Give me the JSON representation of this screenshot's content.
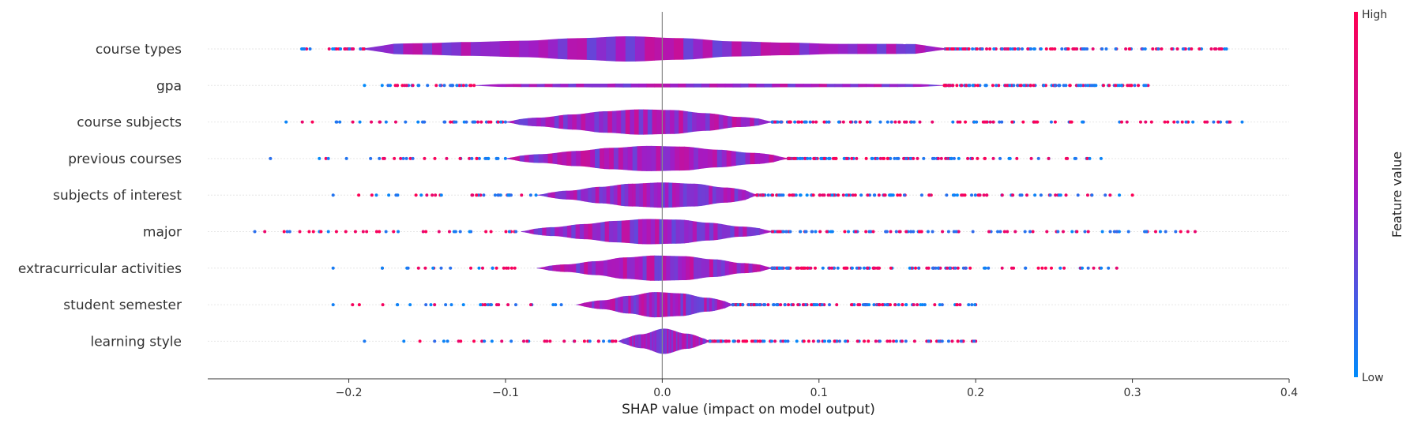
{
  "chart_data": {
    "type": "scatter",
    "subtype": "shap-violin-summary",
    "xlabel": "SHAP value (impact on model output)",
    "xlim": [
      -0.29,
      0.4
    ],
    "xticks": [
      -0.2,
      -0.1,
      0.0,
      0.1,
      0.2,
      0.3,
      0.4
    ],
    "xtick_labels": [
      "−0.2",
      "−0.1",
      "0.0",
      "0.1",
      "0.2",
      "0.3",
      "0.4"
    ],
    "zero_line": 0.0,
    "grid": false,
    "colorbar": {
      "title": "Feature value",
      "high_label": "High",
      "low_label": "Low",
      "high_color": "#ff0052",
      "low_color": "#008bfb",
      "placement": "right"
    },
    "features": [
      {
        "name": "course types",
        "min": -0.23,
        "max": 0.36,
        "violin_min": -0.19,
        "violin_max": 0.18,
        "density": [
          0.35,
          0.45,
          0.55,
          0.65,
          0.85,
          1.0,
          0.85,
          0.6,
          0.5,
          0.4,
          0.4,
          0.35
        ],
        "seed": 11
      },
      {
        "name": "gpa",
        "min": -0.19,
        "max": 0.31,
        "violin_min": -0.12,
        "violin_max": 0.18,
        "density": [
          0.1,
          0.12,
          0.14,
          0.15,
          0.15,
          0.15,
          0.14,
          0.13,
          0.12,
          0.1
        ],
        "seed": 23
      },
      {
        "name": "course subjects",
        "min": -0.24,
        "max": 0.37,
        "violin_min": -0.1,
        "violin_max": 0.07,
        "density": [
          0.15,
          0.35,
          0.6,
          0.85,
          1.0,
          0.95,
          0.7,
          0.4,
          0.2
        ],
        "seed": 37
      },
      {
        "name": "previous courses",
        "min": -0.25,
        "max": 0.28,
        "violin_min": -0.1,
        "violin_max": 0.08,
        "density": [
          0.15,
          0.35,
          0.6,
          0.85,
          1.0,
          0.95,
          0.7,
          0.45,
          0.2
        ],
        "seed": 41
      },
      {
        "name": "subjects of interest",
        "min": -0.21,
        "max": 0.3,
        "violin_min": -0.08,
        "violin_max": 0.06,
        "density": [
          0.1,
          0.35,
          0.65,
          0.9,
          1.0,
          0.9,
          0.6,
          0.3
        ],
        "seed": 53
      },
      {
        "name": "major",
        "min": -0.26,
        "max": 0.34,
        "violin_min": -0.09,
        "violin_max": 0.07,
        "density": [
          0.15,
          0.35,
          0.6,
          0.85,
          1.0,
          0.95,
          0.7,
          0.4,
          0.2
        ],
        "seed": 67
      },
      {
        "name": "extracurricular activities",
        "min": -0.21,
        "max": 0.29,
        "violin_min": -0.08,
        "violin_max": 0.07,
        "density": [
          0.12,
          0.3,
          0.55,
          0.85,
          1.0,
          0.95,
          0.7,
          0.4,
          0.2
        ],
        "seed": 71
      },
      {
        "name": "student semester",
        "min": -0.21,
        "max": 0.2,
        "violin_min": -0.055,
        "violin_max": 0.045,
        "density": [
          0.1,
          0.35,
          0.7,
          1.0,
          0.9,
          0.55,
          0.2
        ],
        "seed": 83
      },
      {
        "name": "learning style",
        "min": -0.19,
        "max": 0.2,
        "violin_min": -0.028,
        "violin_max": 0.03,
        "density": [
          0.15,
          0.55,
          1.0,
          0.6,
          0.15
        ],
        "seed": 97
      }
    ]
  }
}
